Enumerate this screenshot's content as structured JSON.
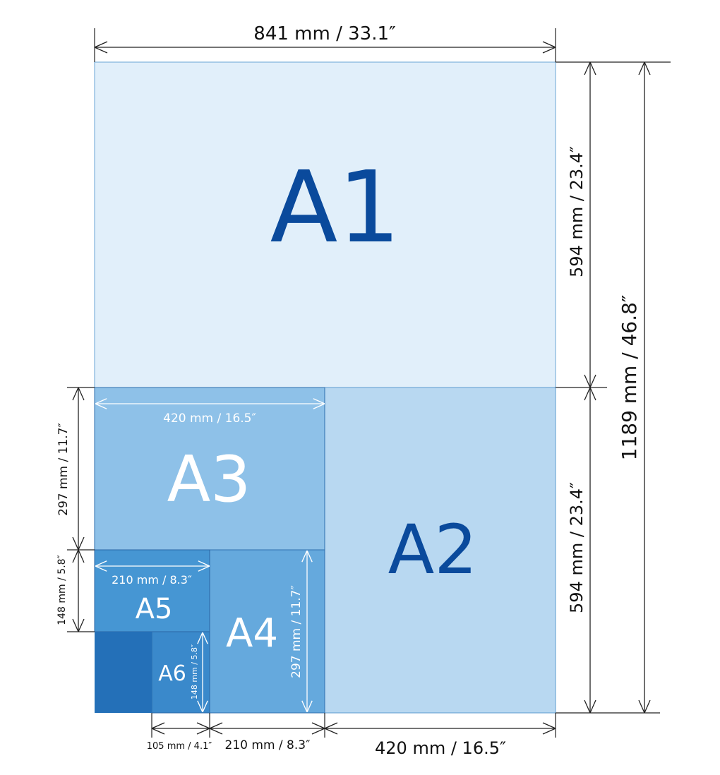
{
  "colors": {
    "A1": "#e1effa",
    "A2": "#b8d8f1",
    "A3": "#8ec1e8",
    "A4": "#65a9dd",
    "A5": "#4696d3",
    "A6": "#3a89cb",
    "A7": "#2470b8",
    "dark_label": "#0a4a9c",
    "light_label": "#ffffff"
  },
  "sheets": {
    "A1": "A1",
    "A2": "A2",
    "A3": "A3",
    "A4": "A4",
    "A5": "A5",
    "A6": "A6"
  },
  "dimensions": {
    "a1_width": "841 mm / 33.1″",
    "a1_height": "594 mm / 23.4″",
    "a2_height": "594 mm / 23.4″",
    "a0_height": "1189 mm / 46.8″",
    "a3_width": "420 mm / 16.5″",
    "a3_height": "297 mm / 11.7″",
    "a5_width": "210 mm / 8.3″",
    "a5_height": "148 mm / 5.8″",
    "a4_height": "297 mm / 11.7″",
    "a6_height": "148 mm / 5.8″",
    "a7_width": "105 mm / 4.1″",
    "a4_width": "210 mm / 8.3″",
    "a2_width": "420 mm / 16.5″"
  }
}
